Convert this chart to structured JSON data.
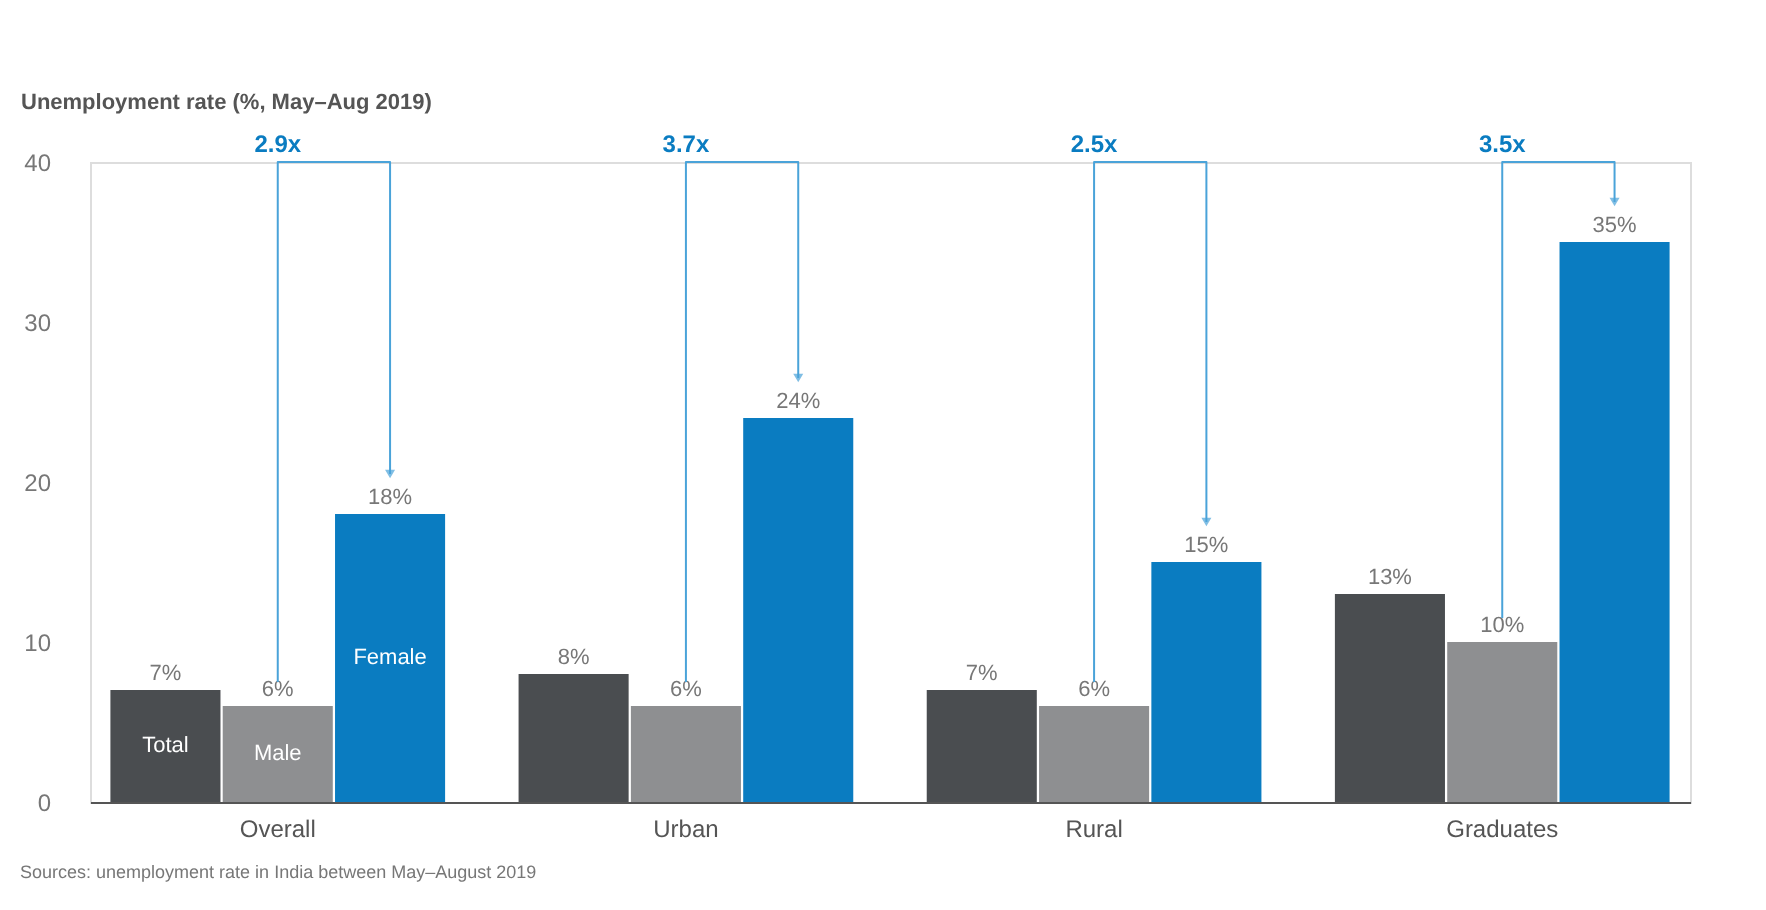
{
  "chart_data": {
    "type": "bar",
    "ylabel": "Unemployment rate (%, May–Aug 2019)",
    "categories": [
      "Overall",
      "Urban",
      "Rural",
      "Graduates"
    ],
    "series": [
      {
        "name": "Total",
        "color": "#4a4d50",
        "values": [
          7,
          8,
          7,
          13
        ],
        "value_labels": [
          "7%",
          "8%",
          "7%",
          "13%"
        ]
      },
      {
        "name": "Male",
        "color": "#8e8f91",
        "values": [
          6,
          6,
          6,
          10
        ],
        "value_labels": [
          "6%",
          "6%",
          "6%",
          "10%"
        ]
      },
      {
        "name": "Female",
        "color": "#0a7cc1",
        "values": [
          18,
          24,
          15,
          35
        ],
        "value_labels": [
          "18%",
          "24%",
          "15%",
          "35%"
        ]
      }
    ],
    "ylim": [
      0,
      40
    ],
    "yticks": [
      0,
      10,
      20,
      30,
      40
    ],
    "grid": false,
    "legend": false,
    "annotations": [
      "2.9x",
      "3.7x",
      "2.5x",
      "3.5x",
      "Sources: unemployment rate in India between May–August 2019"
    ]
  }
}
